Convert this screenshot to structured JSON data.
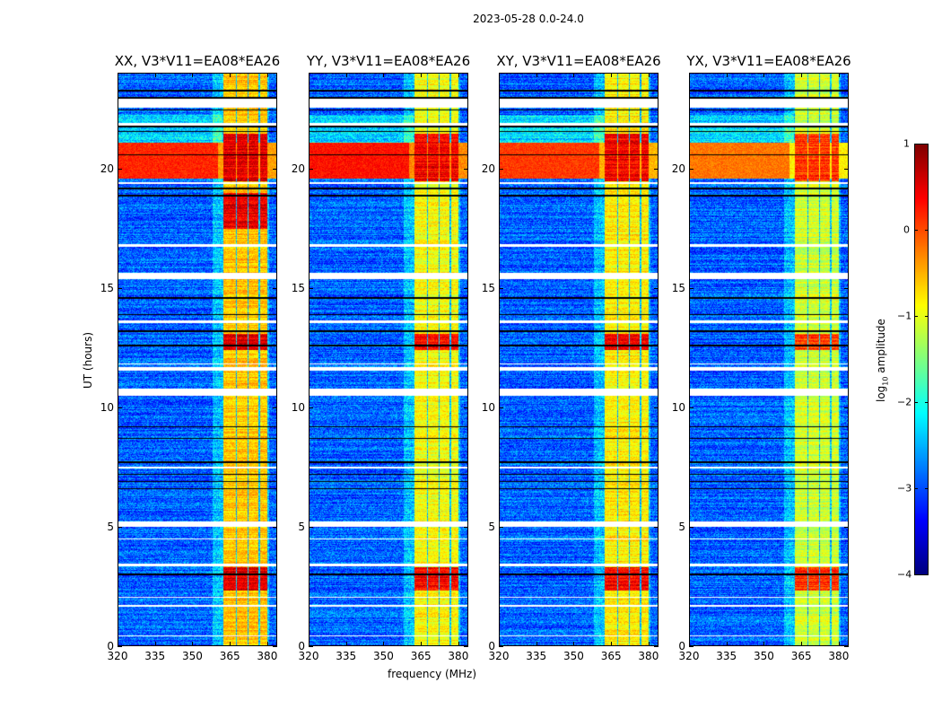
{
  "chart_data": {
    "type": "heatmap",
    "title": "2023-05-28 0.0-24.0",
    "xlabel": "frequency (MHz)",
    "ylabel": "UT (hours)",
    "xlim": [
      320,
      384
    ],
    "ylim": [
      0,
      24
    ],
    "xticks": [
      "320",
      "335",
      "350",
      "365",
      "380"
    ],
    "xtick_values": [
      320,
      335,
      350,
      365,
      380
    ],
    "yticks": [
      "0",
      "5",
      "10",
      "15",
      "20"
    ],
    "ytick_values": [
      0,
      5,
      10,
      15,
      20
    ],
    "colormap": "jet",
    "colorbar": {
      "label_main": "log",
      "label_sub": "10",
      "label_rest": " amplitude",
      "range": [
        -4,
        1
      ],
      "ticks": [
        "1",
        "0",
        "−1",
        "−2",
        "−3",
        "−4"
      ],
      "tick_values": [
        1,
        0,
        -1,
        -2,
        -3,
        -4
      ]
    },
    "background_level": -2.9,
    "bright_channel_blocks_mhz": [
      [
        362.5,
        367.3
      ],
      [
        367.8,
        372.0
      ],
      [
        372.5,
        376.6
      ],
      [
        377.1,
        380.2
      ]
    ],
    "strong_rfi_hours": [
      [
        19.6,
        21.1
      ]
    ],
    "flagged_white_hours": [
      [
        0.38,
        0.45
      ],
      [
        1.65,
        1.72
      ],
      [
        2.0,
        2.05
      ],
      [
        3.35,
        3.45
      ],
      [
        4.45,
        4.5
      ],
      [
        5.0,
        5.2
      ],
      [
        7.45,
        7.5
      ],
      [
        10.5,
        10.8
      ],
      [
        11.55,
        11.7
      ],
      [
        11.8,
        11.85
      ],
      [
        13.55,
        13.65
      ],
      [
        15.4,
        15.65
      ],
      [
        16.75,
        16.85
      ],
      [
        19.4,
        19.45
      ],
      [
        21.85,
        21.95
      ],
      [
        22.6,
        22.95
      ]
    ],
    "flagged_black_hours": [
      3.0,
      6.6,
      6.9,
      7.2,
      7.7,
      8.7,
      9.2,
      12.6,
      13.2,
      13.9,
      14.6,
      18.9,
      19.2,
      20.6,
      21.6,
      21.8,
      22.5,
      23.0,
      23.3
    ],
    "panels": [
      {
        "title": "XX, V3*V11=EA08*EA26",
        "band_level": -0.6,
        "peak_level": 0.5,
        "rfi_level": 0.2
      },
      {
        "title": "YY, V3*V11=EA08*EA26",
        "band_level": -0.9,
        "peak_level": 0.4,
        "rfi_level": 0.3
      },
      {
        "title": "XY, V3*V11=EA08*EA26",
        "band_level": -0.8,
        "peak_level": 0.4,
        "rfi_level": 0.1
      },
      {
        "title": "YX, V3*V11=EA08*EA26",
        "band_level": -1.1,
        "peak_level": 0.1,
        "rfi_level": -0.2
      }
    ]
  }
}
